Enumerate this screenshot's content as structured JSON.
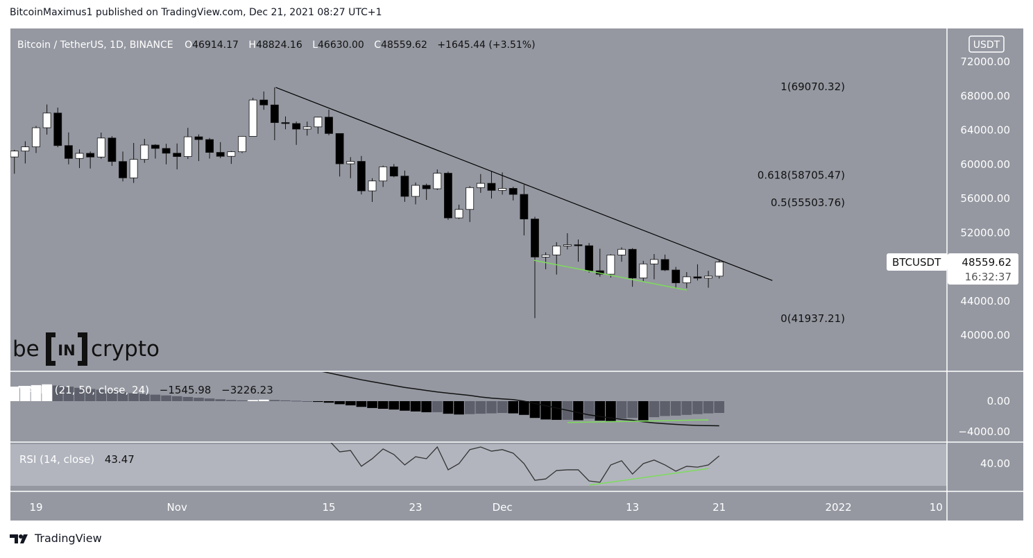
{
  "header": {
    "text": "BitcoinMaximus1 published on TradingView.com, Dec 21, 2021 08:27 UTC+1"
  },
  "footer": {
    "brand": "TradingView"
  },
  "legend": {
    "symbol": "Bitcoin / TetherUS, 1D, BINANCE",
    "o_label": "O",
    "o": "46914.17",
    "h_label": "H",
    "h": "48824.16",
    "l_label": "L",
    "l": "46630.00",
    "c_label": "C",
    "c": "48559.62",
    "change": "+1645.44 (+3.51%)"
  },
  "currency_button": "USDT",
  "price_tag": {
    "symbol": "BTCUSDT",
    "price": "48559.62",
    "countdown": "16:32:37"
  },
  "watermark": {
    "left": "be",
    "mid": "IN",
    "right": "crypto"
  },
  "macd_legend": {
    "name": "MACD",
    "params": "(21, 50, close, 24)",
    "v1": "−1545.98",
    "v2": "−3226.23"
  },
  "rsi_legend": {
    "name": "RSI (14, close)",
    "value": "43.47"
  },
  "colors": {
    "pane": "#9598a1",
    "rsi_band": "#b2b5be",
    "up": "#ffffff",
    "down": "#000000",
    "hist_gray": "#5d606b",
    "green": "#7ddc5b"
  },
  "chart_data": {
    "type": "candlestick",
    "title": "Bitcoin / TetherUS, 1D, BINANCE",
    "start_date": "2021-10-17",
    "x_tick_labels": [
      {
        "label": "19",
        "index": 2
      },
      {
        "label": "Nov",
        "index": 15
      },
      {
        "label": "15",
        "index": 29
      },
      {
        "label": "23",
        "index": 37
      },
      {
        "label": "Dec",
        "index": 45
      },
      {
        "label": "13",
        "index": 57
      },
      {
        "label": "21",
        "index": 65
      },
      {
        "label": "2022",
        "index": 76
      },
      {
        "label": "10",
        "index": 85
      }
    ],
    "y_ticks": [
      "72000.00",
      "68000.00",
      "64000.00",
      "60000.00",
      "56000.00",
      "52000.00",
      "44000.00",
      "40000.00"
    ],
    "y_tick_values": [
      72000,
      68000,
      64000,
      60000,
      56000,
      52000,
      44000,
      40000
    ],
    "ylim": [
      38000,
      76000
    ],
    "ohlc": [
      [
        60861,
        61700,
        58900,
        61553
      ],
      [
        61553,
        62700,
        60100,
        62044
      ],
      [
        62044,
        64486,
        61322,
        64280
      ],
      [
        64280,
        67000,
        63481,
        66001
      ],
      [
        66001,
        66639,
        62000,
        62193
      ],
      [
        62193,
        63732,
        60000,
        60688
      ],
      [
        60688,
        61747,
        59562,
        61286
      ],
      [
        61286,
        61500,
        59510,
        60852
      ],
      [
        60852,
        63710,
        60650,
        63078
      ],
      [
        63078,
        63293,
        59817,
        60329
      ],
      [
        60329,
        61496,
        58000,
        58413
      ],
      [
        58413,
        62499,
        57820,
        60575
      ],
      [
        60575,
        62980,
        60174,
        62253
      ],
      [
        62253,
        62359,
        60673,
        61859
      ],
      [
        61859,
        62405,
        60000,
        61299
      ],
      [
        61299,
        62437,
        59405,
        60911
      ],
      [
        60911,
        64270,
        60624,
        63219
      ],
      [
        63219,
        63500,
        60382,
        62896
      ],
      [
        62896,
        63086,
        60677,
        61395
      ],
      [
        61395,
        62595,
        60721,
        60937
      ],
      [
        60937,
        61560,
        60050,
        61470
      ],
      [
        61470,
        63286,
        61322,
        63273
      ],
      [
        63273,
        67789,
        63273,
        67525
      ],
      [
        67525,
        68524,
        66382,
        66947
      ],
      [
        66947,
        69000,
        62822,
        64882
      ],
      [
        64882,
        65600,
        64100,
        64774
      ],
      [
        64774,
        65000,
        62278,
        64122
      ],
      [
        64122,
        65000,
        63360,
        64380
      ],
      [
        64380,
        65550,
        63576,
        65519
      ],
      [
        65519,
        66401,
        63400,
        63606
      ],
      [
        63606,
        63617,
        58574,
        60058
      ],
      [
        60058,
        60840,
        58373,
        60344
      ],
      [
        60344,
        60976,
        56474,
        56891
      ],
      [
        56891,
        58373,
        55600,
        58052
      ],
      [
        58052,
        59845,
        57353,
        59707
      ],
      [
        59707,
        60029,
        58486,
        58622
      ],
      [
        58622,
        59266,
        55610,
        56247
      ],
      [
        56247,
        57875,
        55317,
        57541
      ],
      [
        57541,
        57735,
        55837,
        57138
      ],
      [
        57138,
        59398,
        57000,
        58960
      ],
      [
        58960,
        59150,
        53500,
        53726
      ],
      [
        53726,
        55280,
        53610,
        54721
      ],
      [
        54721,
        57445,
        53256,
        57274
      ],
      [
        57274,
        58865,
        56666,
        57776
      ],
      [
        57776,
        59176,
        56000,
        56950
      ],
      [
        56950,
        59053,
        56458,
        57184
      ],
      [
        57184,
        57375,
        55777,
        56480
      ],
      [
        56480,
        57600,
        51680,
        53601
      ],
      [
        53601,
        53859,
        42000,
        49152
      ],
      [
        49152,
        49699,
        47727,
        49396
      ],
      [
        49396,
        50891,
        47100,
        50441
      ],
      [
        50441,
        51936,
        50039,
        50588
      ],
      [
        50588,
        51200,
        48600,
        50471
      ],
      [
        50471,
        50797,
        47320,
        47545
      ],
      [
        47545,
        50125,
        46852,
        47140
      ],
      [
        47140,
        49485,
        46751,
        49389
      ],
      [
        49389,
        50280,
        48600,
        50053
      ],
      [
        50053,
        50189,
        45672,
        46702
      ],
      [
        46702,
        48700,
        46290,
        48343
      ],
      [
        48343,
        49500,
        46547,
        48864
      ],
      [
        48864,
        49436,
        47511,
        47632
      ],
      [
        47632,
        47995,
        45456,
        46131
      ],
      [
        46131,
        47392,
        45500,
        46834
      ],
      [
        46834,
        48300,
        46406,
        46681
      ],
      [
        46681,
        47537,
        45558,
        46914
      ],
      [
        46914,
        48824,
        46630,
        48559.62
      ]
    ],
    "fib_levels": [
      {
        "label": "1(69070.32)",
        "price": 69070.32
      },
      {
        "label": "0.618(58705.47)",
        "price": 58705.47
      },
      {
        "label": "0.5(55503.76)",
        "price": 55503.76
      },
      {
        "label": "0(41937.21)",
        "price": 41937.21
      }
    ],
    "trendlines": [
      {
        "name": "descending-resistance",
        "color": "#000000",
        "from": {
          "index": 24.1,
          "price": 69000
        },
        "to": {
          "index": 69.9,
          "price": 46400
        }
      },
      {
        "name": "price-support",
        "color": "#7ddc5b",
        "from": {
          "index": 47.9,
          "price": 48770
        },
        "to": {
          "index": 62,
          "price": 45280
        }
      }
    ],
    "macd": {
      "y_ticks": [
        "0.00",
        "−4000.00"
      ],
      "y_tick_values": [
        0,
        -4000
      ],
      "histogram": [
        1900,
        2000,
        2100,
        2200,
        2050,
        1900,
        1750,
        1600,
        1500,
        1350,
        1200,
        1050,
        950,
        850,
        750,
        650,
        550,
        450,
        350,
        250,
        150,
        100,
        150,
        200,
        150,
        100,
        50,
        0,
        -100,
        -200,
        -400,
        -550,
        -750,
        -900,
        -1000,
        -1100,
        -1250,
        -1350,
        -1450,
        -1450,
        -1650,
        -1750,
        -1700,
        -1650,
        -1600,
        -1550,
        -1600,
        -1800,
        -2200,
        -2400,
        -2450,
        -2450,
        -2500,
        -2300,
        -2550,
        -2600,
        -2300,
        -2200,
        -2500,
        -2100,
        -1950,
        -1900,
        -1800,
        -1700,
        -1600,
        -1546
      ],
      "signal": [
        null,
        null,
        null,
        null,
        null,
        null,
        null,
        null,
        null,
        null,
        null,
        null,
        null,
        null,
        null,
        null,
        null,
        null,
        null,
        null,
        null,
        null,
        null,
        null,
        null,
        null,
        null,
        null,
        4000,
        3700,
        3400,
        3100,
        2800,
        2550,
        2300,
        2050,
        1800,
        1600,
        1400,
        1200,
        1050,
        900,
        750,
        550,
        400,
        300,
        200,
        0,
        -300,
        -600,
        -900,
        -1200,
        -1500,
        -1800,
        -2000,
        -2200,
        -2400,
        -2500,
        -2700,
        -2850,
        -2950,
        -3050,
        -3120,
        -3180,
        -3210,
        -3226
      ],
      "divergence_line": {
        "from": {
          "index": 51,
          "value": -2800
        },
        "to": {
          "index": 64,
          "value": -2450
        }
      }
    },
    "rsi": {
      "y_ticks": [
        "40.00"
      ],
      "y_tick_values": [
        40
      ],
      "values": [
        null,
        null,
        null,
        null,
        null,
        null,
        null,
        null,
        null,
        null,
        null,
        null,
        null,
        null,
        null,
        null,
        null,
        null,
        null,
        null,
        null,
        null,
        null,
        null,
        null,
        null,
        null,
        null,
        null,
        50.5,
        45.3,
        45.9,
        38.8,
        42.2,
        46.6,
        44.1,
        39.4,
        43.1,
        42.2,
        47.5,
        37.2,
        40.0,
        46.3,
        47.5,
        45.6,
        46.3,
        44.7,
        40.0,
        32.5,
        33.1,
        36.9,
        37.2,
        37.2,
        32.2,
        31.6,
        39.4,
        41.3,
        35.3,
        40.0,
        41.6,
        39.4,
        36.6,
        38.8,
        38.4,
        39.4,
        43.47
      ],
      "band": [
        30,
        70
      ],
      "divergence_line": {
        "from": {
          "index": 53,
          "value": 30.3
        },
        "to": {
          "index": 64,
          "value": 37.8
        }
      }
    }
  }
}
